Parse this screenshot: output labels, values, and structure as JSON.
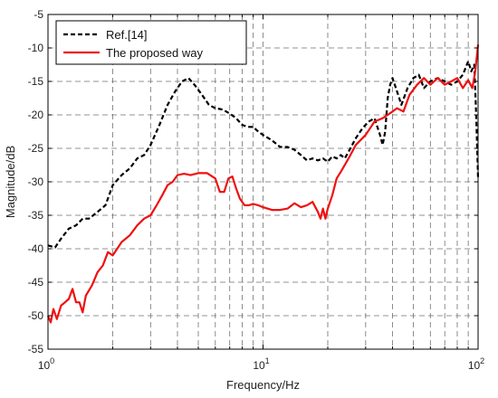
{
  "chart_data": {
    "type": "line",
    "xlabel": "Frequency/Hz",
    "ylabel": "Magnitude/dB",
    "xscale": "log",
    "xlim": [
      1,
      100
    ],
    "ylim": [
      -55,
      -5
    ],
    "x_ticks": [
      {
        "value": 1,
        "label": "10",
        "sup": "0"
      },
      {
        "value": 10,
        "label": "10",
        "sup": "1"
      },
      {
        "value": 100,
        "label": "10",
        "sup": "2"
      }
    ],
    "y_ticks": [
      -55,
      -50,
      -45,
      -40,
      -35,
      -30,
      -25,
      -20,
      -15,
      -10,
      -5
    ],
    "grid": true,
    "legend_position": "top-left",
    "series": [
      {
        "name": "Ref.[14]",
        "color": "#000000",
        "dash": "dashed",
        "x": [
          1.0,
          1.08,
          1.15,
          1.25,
          1.35,
          1.45,
          1.55,
          1.7,
          1.85,
          2.0,
          2.2,
          2.4,
          2.6,
          2.8,
          3.0,
          3.3,
          3.6,
          3.9,
          4.2,
          4.5,
          4.8,
          5.2,
          5.6,
          6.0,
          6.5,
          7.0,
          7.5,
          8.0,
          8.5,
          9.0,
          9.5,
          10.0,
          11.0,
          12.0,
          13.0,
          14.0,
          15.0,
          16.0,
          17.0,
          18.0,
          19.0,
          20.0,
          21.0,
          22.0,
          23.0,
          24.0,
          25.0,
          27.0,
          29.0,
          31.0,
          33.0,
          35.0,
          36.0,
          37.0,
          38.0,
          39.0,
          40.0,
          42.0,
          44.0,
          47.0,
          50.0,
          53.0,
          56.0,
          60.0,
          65.0,
          70.0,
          75.0,
          80.0,
          85.0,
          90.0,
          93.0,
          96.0,
          98.0,
          100.0
        ],
        "values": [
          -39.5,
          -39.8,
          -38.5,
          -37.0,
          -36.5,
          -35.5,
          -35.5,
          -34.5,
          -33.5,
          -30.5,
          -29.0,
          -28.0,
          -26.5,
          -26.0,
          -24.5,
          -21.5,
          -18.5,
          -16.5,
          -15.0,
          -14.5,
          -15.5,
          -17.0,
          -18.5,
          -19.0,
          -19.2,
          -19.8,
          -20.5,
          -21.5,
          -21.8,
          -21.8,
          -22.5,
          -23.0,
          -23.8,
          -24.8,
          -24.8,
          -25.2,
          -26.0,
          -26.8,
          -26.5,
          -26.8,
          -26.5,
          -27.0,
          -26.2,
          -26.5,
          -26.0,
          -26.5,
          -25.5,
          -23.5,
          -22.0,
          -21.0,
          -20.5,
          -23.0,
          -24.5,
          -22.5,
          -17.5,
          -15.5,
          -14.5,
          -16.5,
          -18.5,
          -16.0,
          -14.5,
          -14.0,
          -16.0,
          -15.0,
          -14.5,
          -15.0,
          -15.5,
          -15.0,
          -14.0,
          -12.0,
          -13.5,
          -12.5,
          -20.0,
          -29.5
        ]
      },
      {
        "name": "The proposed way",
        "color": "#ee1111",
        "dash": "solid",
        "x": [
          1.0,
          1.03,
          1.06,
          1.1,
          1.15,
          1.2,
          1.25,
          1.3,
          1.35,
          1.4,
          1.45,
          1.5,
          1.6,
          1.7,
          1.8,
          1.9,
          2.0,
          2.2,
          2.4,
          2.6,
          2.8,
          3.0,
          3.2,
          3.4,
          3.6,
          3.8,
          4.0,
          4.3,
          4.6,
          5.0,
          5.5,
          6.0,
          6.3,
          6.6,
          6.9,
          7.2,
          7.5,
          7.8,
          8.2,
          8.6,
          9.0,
          9.5,
          10.0,
          11.0,
          12.0,
          13.0,
          14.0,
          15.0,
          16.0,
          17.0,
          18.0,
          18.5,
          19.0,
          19.5,
          20.0,
          21.0,
          22.0,
          23.0,
          25.0,
          27.0,
          30.0,
          33.0,
          36.0,
          38.0,
          40.0,
          42.0,
          45.0,
          48.0,
          52.0,
          56.0,
          60.0,
          65.0,
          70.0,
          75.0,
          80.0,
          85.0,
          90.0,
          94.0,
          97.0,
          100.0
        ],
        "values": [
          -50.0,
          -51.0,
          -49.0,
          -50.5,
          -48.5,
          -48.0,
          -47.5,
          -46.0,
          -48.0,
          -48.0,
          -49.5,
          -47.0,
          -45.5,
          -43.5,
          -42.5,
          -40.5,
          -41.0,
          -39.0,
          -38.0,
          -36.5,
          -35.5,
          -35.0,
          -33.5,
          -32.0,
          -30.5,
          -30.0,
          -29.0,
          -28.8,
          -29.0,
          -28.7,
          -28.7,
          -29.5,
          -31.5,
          -31.5,
          -29.5,
          -29.2,
          -31.0,
          -32.5,
          -33.5,
          -33.5,
          -33.3,
          -33.5,
          -33.8,
          -34.2,
          -34.2,
          -34.0,
          -33.2,
          -33.8,
          -33.5,
          -33.0,
          -34.5,
          -35.5,
          -34.0,
          -35.5,
          -34.0,
          -32.0,
          -29.5,
          -28.5,
          -26.5,
          -24.5,
          -23.0,
          -21.0,
          -20.5,
          -20.0,
          -19.5,
          -19.0,
          -19.5,
          -17.0,
          -15.5,
          -14.5,
          -15.5,
          -14.5,
          -15.5,
          -15.0,
          -14.5,
          -16.0,
          -14.8,
          -16.0,
          -13.5,
          -9.5
        ]
      }
    ]
  }
}
